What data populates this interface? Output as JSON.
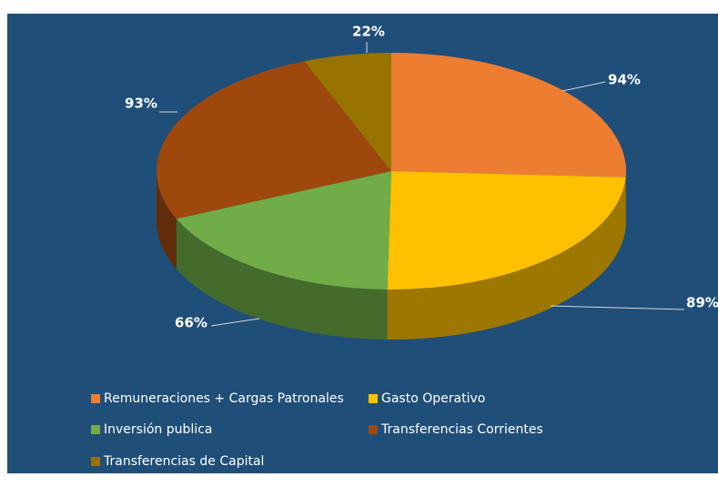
{
  "chart_data": {
    "type": "pie3d",
    "categories": [
      "Remuneraciones + Cargas Patronales",
      "Gasto Operativo",
      "Inversión publica",
      "Transferencias Corrientes",
      "Transferencias de Capital"
    ],
    "values": [
      94,
      89,
      66,
      93,
      22
    ],
    "value_labels": [
      "94%",
      "89%",
      "66%",
      "93%",
      "22%"
    ],
    "colors": [
      "#ed7d31",
      "#ffc000",
      "#70ad47",
      "#9e480e",
      "#997300"
    ],
    "legend": "bottom"
  }
}
